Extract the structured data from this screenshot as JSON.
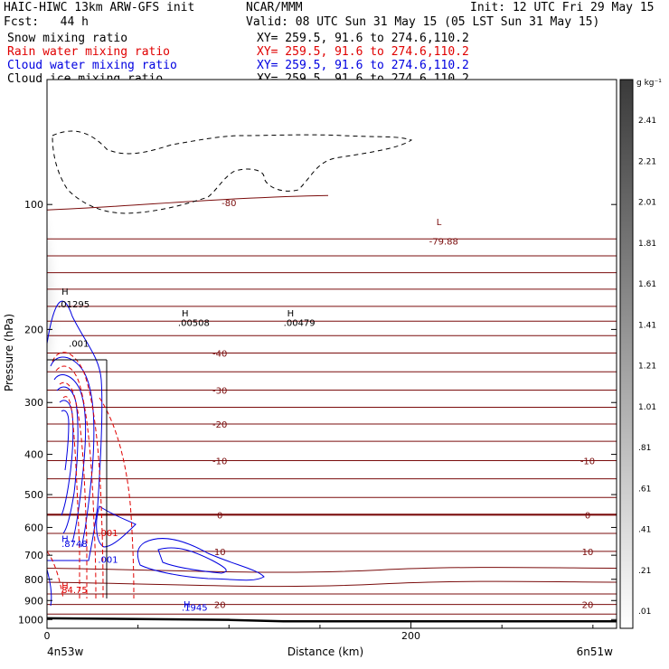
{
  "header": {
    "line1_left": "HAIC-HIWC 13km ARW-GFS init",
    "line1_mid": "NCAR/MMM",
    "line1_right": "Init: 12 UTC Fri 29 May 15",
    "fcst": "Fcst:   44 h",
    "valid": "Valid: 08 UTC Sun 31 May 15 (05 LST Sun 31 May 15)",
    "fields": [
      {
        "name": "Snow mixing ratio",
        "xy": "XY= 259.5, 91.6 to 274.6,110.2",
        "color": "#000000"
      },
      {
        "name": "Rain water mixing ratio",
        "xy": "XY= 259.5, 91.6 to 274.6,110.2",
        "color": "#e00000"
      },
      {
        "name": "Cloud water mixing ratio",
        "xy": "XY= 259.5, 91.6 to 274.6,110.2",
        "color": "#0000e0"
      },
      {
        "name": "Cloud ice mixing ratio",
        "xy": "XY= 259.5, 91.6 to 274.6,110.2",
        "color": "#000000"
      }
    ]
  },
  "colors": {
    "temperature": "#7a0c0c",
    "rain": "#e00000",
    "cloud_water": "#0000e0",
    "ice": "#000000"
  },
  "chart_data": {
    "type": "contour cross-section",
    "xlabel": "Distance (km)",
    "ylabel": "Pressure (hPa)",
    "x_ticks": [
      0,
      200
    ],
    "x_minor_ticks": [
      50,
      100,
      150,
      250,
      300
    ],
    "x_range": [
      0,
      313
    ],
    "y_ticks": [
      100,
      200,
      300,
      400,
      500,
      600,
      700,
      800,
      900,
      1000
    ],
    "y_range": [
      50,
      1050
    ],
    "y_scale": "log-pressure",
    "endpoints": {
      "left": "4n53w",
      "right": "6n51w"
    },
    "colorbar": {
      "unit": "g kg⁻¹",
      "labels": [
        "2.41",
        "2.21",
        "2.01",
        "1.81",
        "1.61",
        "1.41",
        "1.21",
        "1.01",
        ".81",
        ".61",
        ".41",
        ".21",
        ".01"
      ]
    },
    "isotherms": [
      {
        "p": 99,
        "label": "-80"
      },
      {
        "p": 121,
        "label": ""
      },
      {
        "p": 133,
        "label": ""
      },
      {
        "p": 146,
        "label": ""
      },
      {
        "p": 160,
        "label": ""
      },
      {
        "p": 176,
        "label": ""
      },
      {
        "p": 191,
        "label": ""
      },
      {
        "p": 207,
        "label": ""
      },
      {
        "p": 228,
        "label": "-40"
      },
      {
        "p": 253,
        "label": ""
      },
      {
        "p": 280,
        "label": "-30"
      },
      {
        "p": 308,
        "label": ""
      },
      {
        "p": 338,
        "label": "-20"
      },
      {
        "p": 372,
        "label": ""
      },
      {
        "p": 414,
        "label": "-10"
      },
      {
        "p": 458,
        "label": ""
      },
      {
        "p": 508,
        "label": ""
      },
      {
        "p": 559,
        "label": "0"
      },
      {
        "p": 620,
        "label": ""
      },
      {
        "p": 685,
        "label": "10"
      },
      {
        "p": 752,
        "label": ""
      },
      {
        "p": 813,
        "label": ""
      },
      {
        "p": 868,
        "label": ""
      },
      {
        "p": 920,
        "label": "20"
      },
      {
        "p": 970,
        "label": ""
      }
    ],
    "isotherm_side_labels": [
      "-10",
      "0",
      "10",
      "20"
    ],
    "surface_pressure": {
      "x": [
        0,
        100,
        130,
        313
      ],
      "p": [
        993,
        1002,
        1010,
        1010
      ]
    },
    "annotations": [
      {
        "text": "L",
        "color": "#7a0c0c",
        "x": 214,
        "p": 112
      },
      {
        "text": "-79.88",
        "color": "#7a0c0c",
        "x": 210,
        "p": 125
      },
      {
        "text": "H",
        "color": "#000000",
        "x": 8,
        "p": 165
      },
      {
        "text": ".01295",
        "color": "#000000",
        "x": 6,
        "p": 177
      },
      {
        "text": "H",
        "color": "#000000",
        "x": 74,
        "p": 186
      },
      {
        "text": ".00508",
        "color": "#000000",
        "x": 72,
        "p": 196
      },
      {
        "text": "H",
        "color": "#000000",
        "x": 132,
        "p": 186
      },
      {
        "text": ".00479",
        "color": "#000000",
        "x": 130,
        "p": 196
      },
      {
        "text": ".001",
        "color": "#000000",
        "x": 12,
        "p": 220
      },
      {
        "text": ".001",
        "color": "#e00000",
        "x": 28,
        "p": 630
      },
      {
        "text": "H",
        "color": "#0000e0",
        "x": 8,
        "p": 650
      },
      {
        "text": ".8748",
        "color": "#0000e0",
        "x": 8,
        "p": 668
      },
      {
        "text": ".001",
        "color": "#0000e0",
        "x": 28,
        "p": 730
      },
      {
        "text": "H",
        "color": "#e00000",
        "x": 8,
        "p": 845
      },
      {
        "text": "84.75",
        "color": "#e00000",
        "x": 8,
        "p": 863
      },
      {
        "text": "H",
        "color": "#0000e0",
        "x": 75,
        "p": 935
      },
      {
        "text": ".1945",
        "color": "#0000e0",
        "x": 74,
        "p": 952
      }
    ]
  }
}
